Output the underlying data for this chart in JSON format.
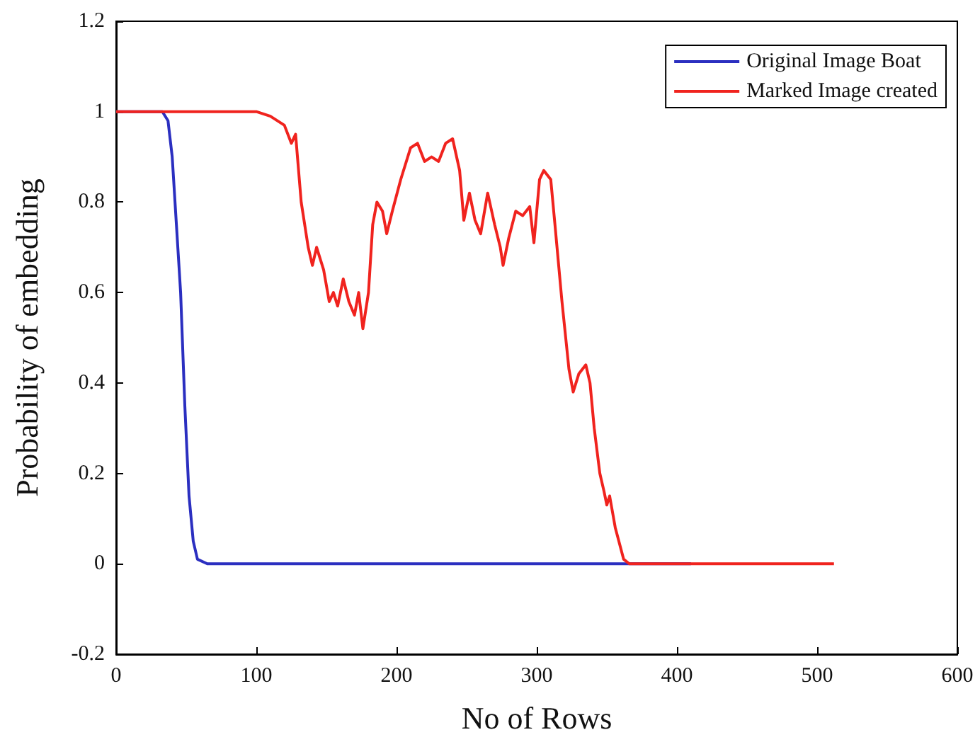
{
  "chart_data": {
    "type": "line",
    "xlabel": "No of Rows",
    "ylabel": "Probability of embedding",
    "xlim": [
      0,
      600
    ],
    "xticks": [
      0,
      100,
      200,
      300,
      400,
      500,
      600
    ],
    "ylim": [
      -0.2,
      1.2
    ],
    "yticks": [
      -0.2,
      0,
      0.2,
      0.4,
      0.6,
      0.8,
      1,
      1.2
    ],
    "grid": false,
    "legend": "top right",
    "marker": "none",
    "line_style": "solid",
    "series": [
      {
        "name": "Original Image Boat",
        "color": "#2b2fc0",
        "x": [
          0,
          33,
          37,
          40,
          43,
          46,
          49,
          52,
          55,
          58,
          65,
          410
        ],
        "values": [
          1,
          1,
          0.98,
          0.9,
          0.75,
          0.6,
          0.35,
          0.15,
          0.05,
          0.01,
          0,
          0
        ]
      },
      {
        "name": "Marked Image created",
        "color": "#f0231e",
        "x": [
          0,
          80,
          100,
          110,
          120,
          125,
          128,
          132,
          137,
          140,
          143,
          148,
          152,
          155,
          158,
          162,
          166,
          170,
          173,
          176,
          180,
          183,
          186,
          190,
          193,
          197,
          203,
          210,
          215,
          220,
          225,
          230,
          235,
          240,
          245,
          248,
          252,
          256,
          260,
          265,
          270,
          274,
          276,
          280,
          285,
          290,
          295,
          298,
          302,
          305,
          310,
          313,
          318,
          323,
          326,
          330,
          335,
          338,
          341,
          345,
          348,
          350,
          352,
          356,
          362,
          366,
          512
        ],
        "values": [
          1,
          1,
          1,
          0.99,
          0.97,
          0.93,
          0.95,
          0.8,
          0.7,
          0.66,
          0.7,
          0.65,
          0.58,
          0.6,
          0.57,
          0.63,
          0.58,
          0.55,
          0.6,
          0.52,
          0.6,
          0.75,
          0.8,
          0.78,
          0.73,
          0.78,
          0.85,
          0.92,
          0.93,
          0.89,
          0.9,
          0.89,
          0.93,
          0.94,
          0.87,
          0.76,
          0.82,
          0.76,
          0.73,
          0.82,
          0.75,
          0.7,
          0.66,
          0.72,
          0.78,
          0.77,
          0.79,
          0.71,
          0.85,
          0.87,
          0.85,
          0.75,
          0.58,
          0.43,
          0.38,
          0.42,
          0.44,
          0.4,
          0.3,
          0.2,
          0.16,
          0.13,
          0.15,
          0.08,
          0.01,
          0,
          0
        ]
      }
    ]
  }
}
